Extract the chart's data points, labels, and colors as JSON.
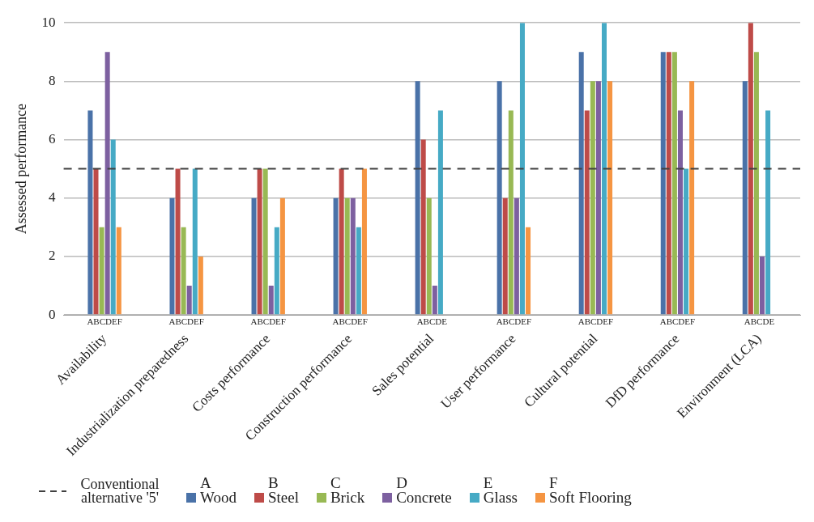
{
  "chart_data": {
    "type": "bar",
    "ylabel": "Assessed performance",
    "categories": [
      "Availability",
      "Industrialization preparedness",
      "Costs performance",
      "Construction performance",
      "Sales potential",
      "User performance",
      "Cultural potential",
      "DfD performance",
      "Environment (LCA)"
    ],
    "series": [
      {
        "name": "A Wood",
        "color": "#4a72a8",
        "values": [
          7,
          4,
          4,
          4,
          8,
          8,
          9,
          9,
          8
        ]
      },
      {
        "name": "B Steel",
        "color": "#be4b48",
        "values": [
          5,
          5,
          5,
          5,
          6,
          4,
          7,
          9,
          10
        ]
      },
      {
        "name": "C Brick",
        "color": "#98b954",
        "values": [
          3,
          3,
          5,
          4,
          4,
          7,
          8,
          9,
          9
        ]
      },
      {
        "name": "D Concrete",
        "color": "#7d60a0",
        "values": [
          9,
          1,
          1,
          4,
          1,
          4,
          8,
          7,
          2
        ]
      },
      {
        "name": "E Glass",
        "color": "#46aac5",
        "values": [
          6,
          5,
          3,
          3,
          7,
          10,
          10,
          5,
          7
        ]
      },
      {
        "name": "F Soft Flooring",
        "color": "#f59542",
        "values": [
          3,
          2,
          4,
          5,
          null,
          3,
          8,
          8,
          null
        ]
      }
    ],
    "ylim": [
      0,
      10
    ],
    "yticks": [
      0,
      2,
      4,
      6,
      8,
      10
    ],
    "grid": "y",
    "legend": "bottom",
    "ref_lines": [
      {
        "axis": "y",
        "value": 5,
        "label": "Conventional alternative '5'",
        "color": "#404040",
        "line_style": "dashed"
      }
    ],
    "annotations": [
      "ABCDEF",
      "ABCDEF",
      "ABCDEF",
      "ABCDEF",
      "ABCDE",
      "ABCDEF",
      "ABCDEF",
      "ABCDEF",
      "ABCDE"
    ]
  }
}
